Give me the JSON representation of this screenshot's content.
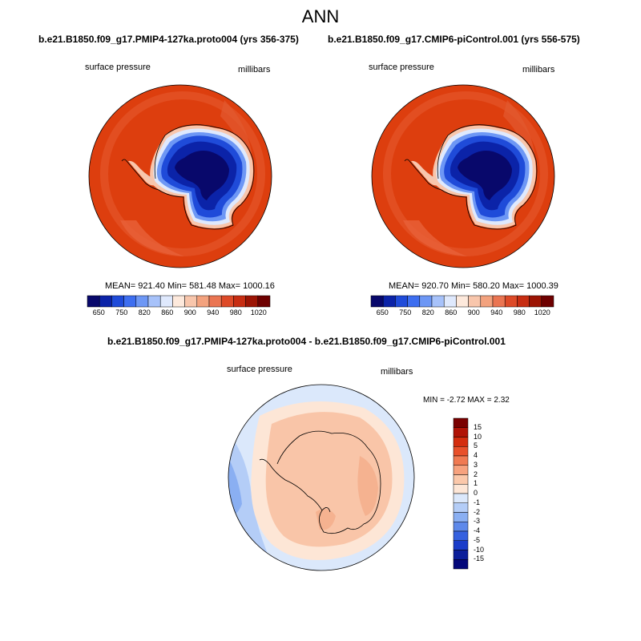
{
  "title": "ANN",
  "panel1": {
    "case": "b.e21.B1850.f09_g17.PMIP4-127ka.proto004 (yrs 356-375)",
    "variable": "surface pressure",
    "units": "millibars",
    "stats": "MEAN= 921.40  Min= 581.48  Max= 1000.16"
  },
  "panel2": {
    "case": "b.e21.B1850.f09_g17.CMIP6-piControl.001 (yrs 556-575)",
    "variable": "surface pressure",
    "units": "millibars",
    "stats": "MEAN= 920.70  Min= 580.20  Max= 1000.39"
  },
  "panel3": {
    "case": "b.e21.B1850.f09_g17.PMIP4-127ka.proto004 - b.e21.B1850.f09_g17.CMIP6-piControl.001",
    "variable": "surface pressure",
    "units": "millibars",
    "stats": "MIN = -2.72 MAX =  2.32"
  },
  "colorbar_top": {
    "labels": [
      "650",
      "750",
      "820",
      "860",
      "900",
      "940",
      "980",
      "1020"
    ],
    "colors": [
      "#08086b",
      "#0b23a8",
      "#1f4bd9",
      "#3d6ef0",
      "#6d97f5",
      "#a7c2fa",
      "#dfe9fd",
      "#fde9dc",
      "#f8c6ac",
      "#f3a27e",
      "#ea7552",
      "#dd4a28",
      "#c72d12",
      "#9c1404",
      "#6e0000"
    ]
  },
  "colorbar_diff": {
    "labels": [
      "15",
      "10",
      "5",
      "4",
      "3",
      "2",
      "1",
      "0",
      "-1",
      "-2",
      "-3",
      "-4",
      "-5",
      "-10",
      "-15"
    ],
    "colors": [
      "#7a0000",
      "#b01306",
      "#d42d0e",
      "#e8502a",
      "#f07a52",
      "#f7a27e",
      "#fbc8aa",
      "#fde6d6",
      "#dbe8fb",
      "#b4cdf7",
      "#8aaff2",
      "#5e89ea",
      "#3661df",
      "#1a3cc9",
      "#0c1f9a",
      "#04087a"
    ]
  },
  "colors": {
    "ocean_field": "#dd3e0e",
    "ice_low": "#07086d",
    "diff_positive": "#f9c5a8",
    "diff_negative": "#b7cdf6",
    "diff_near_zero": "#fde9dc"
  }
}
